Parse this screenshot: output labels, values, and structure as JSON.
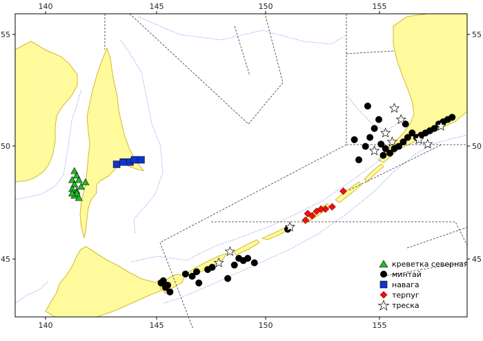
{
  "map": {
    "lon_ticks": [
      "140",
      "145",
      "150",
      "155"
    ],
    "lat_ticks": [
      "55",
      "50",
      "45"
    ],
    "colors": {
      "land": "#fffa9c",
      "coast": "#c9a800",
      "isobath": "#8a8af0",
      "zone_border": "#333333",
      "frame": "#000000",
      "sea": "#ffffff"
    }
  },
  "legend": {
    "items": [
      {
        "label": "креветка северная",
        "marker": "triangle",
        "color": "#22bb22"
      },
      {
        "label": "минтай",
        "marker": "circle",
        "color": "#000000"
      },
      {
        "label": "навага",
        "marker": "square",
        "color": "#1133cc"
      },
      {
        "label": "терпуг",
        "marker": "diamond",
        "color": "#ee1111"
      },
      {
        "label": "треска",
        "marker": "star",
        "color": "#ffffff"
      }
    ]
  },
  "observations": {
    "shrimp": [
      [
        141.3,
        48.9
      ],
      [
        141.4,
        48.7
      ],
      [
        141.2,
        48.5
      ],
      [
        141.3,
        48.3
      ],
      [
        141.2,
        48.1
      ],
      [
        141.4,
        48.0
      ],
      [
        141.3,
        47.8
      ],
      [
        141.5,
        47.7
      ],
      [
        141.4,
        47.9
      ],
      [
        141.6,
        48.2
      ],
      [
        141.8,
        48.4
      ],
      [
        141.2,
        47.9
      ],
      [
        141.5,
        48.5
      ]
    ],
    "pollock": [
      [
        145.2,
        43.9
      ],
      [
        145.4,
        43.7
      ],
      [
        145.6,
        43.5
      ],
      [
        145.3,
        44.0
      ],
      [
        145.5,
        43.8
      ],
      [
        146.3,
        44.3
      ],
      [
        146.6,
        44.2
      ],
      [
        146.8,
        44.4
      ],
      [
        146.9,
        43.9
      ],
      [
        147.3,
        44.5
      ],
      [
        147.5,
        44.6
      ],
      [
        148.2,
        44.1
      ],
      [
        148.5,
        44.7
      ],
      [
        148.7,
        45.0
      ],
      [
        148.9,
        44.9
      ],
      [
        149.1,
        45.0
      ],
      [
        149.4,
        44.8
      ],
      [
        150.9,
        46.3
      ],
      [
        154.1,
        49.4
      ],
      [
        154.4,
        50.0
      ],
      [
        154.6,
        50.4
      ],
      [
        154.8,
        50.8
      ],
      [
        155.0,
        51.2
      ],
      [
        155.1,
        50.1
      ],
      [
        155.3,
        49.9
      ],
      [
        155.5,
        49.7
      ],
      [
        155.7,
        49.9
      ],
      [
        155.9,
        50.0
      ],
      [
        156.1,
        50.2
      ],
      [
        156.3,
        50.4
      ],
      [
        156.5,
        50.6
      ],
      [
        156.7,
        50.4
      ],
      [
        156.9,
        50.5
      ],
      [
        157.1,
        50.6
      ],
      [
        157.3,
        50.7
      ],
      [
        157.5,
        50.8
      ],
      [
        157.7,
        51.0
      ],
      [
        157.9,
        51.1
      ],
      [
        158.1,
        51.2
      ],
      [
        158.3,
        51.3
      ],
      [
        156.2,
        51.0
      ],
      [
        154.5,
        51.8
      ],
      [
        155.2,
        49.6
      ],
      [
        153.9,
        50.3
      ]
    ],
    "navaga": [
      [
        143.2,
        49.2
      ],
      [
        143.5,
        49.3
      ],
      [
        143.8,
        49.3
      ],
      [
        144.0,
        49.4
      ],
      [
        144.3,
        49.4
      ]
    ],
    "greenling": [
      [
        153.4,
        48.0
      ],
      [
        152.9,
        47.3
      ],
      [
        152.6,
        47.2
      ],
      [
        152.4,
        47.2
      ],
      [
        152.2,
        47.1
      ],
      [
        152.0,
        46.9
      ],
      [
        151.8,
        47.0
      ],
      [
        151.7,
        46.7
      ]
    ],
    "cod": [
      [
        155.7,
        51.7
      ],
      [
        156.0,
        51.2
      ],
      [
        155.3,
        50.6
      ],
      [
        156.8,
        50.3
      ],
      [
        157.2,
        50.1
      ],
      [
        157.8,
        50.9
      ],
      [
        154.8,
        49.8
      ],
      [
        155.6,
        50.2
      ],
      [
        147.8,
        44.8
      ],
      [
        148.3,
        45.3
      ],
      [
        151.0,
        46.4
      ]
    ]
  }
}
